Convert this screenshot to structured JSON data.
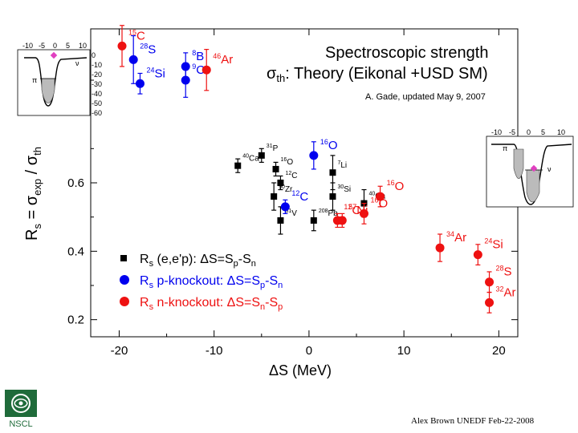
{
  "chart_data": {
    "type": "scatter",
    "title": "Spectroscopic strength",
    "subtitle_sym": "σ",
    "subtitle_sub": "th",
    "subtitle_rest": ": Theory (Eikonal +USD SM)",
    "credit": "A. Gade, updated May 9, 2007",
    "xlabel": "ΔS (MeV)",
    "ylabel_parts": [
      "R",
      "s",
      " = σ",
      "exp",
      " / σ",
      "th"
    ],
    "xlim": [
      -23,
      22
    ],
    "ylim": [
      0.15,
      1.05
    ],
    "x_ticks": [
      -20,
      -10,
      0,
      10,
      20
    ],
    "y_ticks": [
      0.2,
      0.4,
      0.6
    ],
    "legend": [
      {
        "series": "ee",
        "prefix": "R",
        "sub": "s",
        "text": " (e,e'p): ΔS=S",
        "sub2": "p",
        "text2": "-S",
        "sub3": "n"
      },
      {
        "series": "pk",
        "prefix": "R",
        "sub": "s",
        "text": " p-knockout: ΔS=S",
        "sub2": "p",
        "text2": "-S",
        "sub3": "n"
      },
      {
        "series": "nk",
        "prefix": "R",
        "sub": "s",
        "text": " n-knockout: ΔS=S",
        "sub2": "n",
        "text2": "-S",
        "sub3": "p"
      }
    ],
    "series": [
      {
        "id": "ee",
        "name": "(e,e'p)",
        "color": "#000000",
        "marker": "square",
        "points": [
          {
            "x": -7.5,
            "y": 0.65,
            "err": 0.02,
            "label_mass": "40",
            "label_el": "Ca"
          },
          {
            "x": -5.0,
            "y": 0.68,
            "err": 0.02,
            "label_mass": "31",
            "label_el": "P"
          },
          {
            "x": -3.5,
            "y": 0.64,
            "err": 0.02,
            "label_mass": "16",
            "label_el": "O"
          },
          {
            "x": -3.0,
            "y": 0.6,
            "err": 0.02,
            "label_mass": "12",
            "label_el": "C"
          },
          {
            "x": -3.7,
            "y": 0.56,
            "err": 0.04,
            "label_mass": "90",
            "label_el": "Zr"
          },
          {
            "x": -3.0,
            "y": 0.49,
            "err": 0.04,
            "label_mass": "51",
            "label_el": "V"
          },
          {
            "x": 0.5,
            "y": 0.49,
            "err": 0.03,
            "label_mass": "208",
            "label_el": "Pb"
          },
          {
            "x": 2.5,
            "y": 0.63,
            "err": 0.05,
            "label_mass": "7",
            "label_el": "Li"
          },
          {
            "x": 2.5,
            "y": 0.56,
            "err": 0.04,
            "label_mass": "30",
            "label_el": "Si"
          },
          {
            "x": 5.8,
            "y": 0.54,
            "err": 0.04,
            "label_mass": "40",
            "label_el": "Ca"
          }
        ]
      },
      {
        "id": "pk",
        "name": "p-knockout",
        "color": "#0000ee",
        "marker": "circle",
        "points": [
          {
            "x": -18.5,
            "y": 0.96,
            "err": 0.07,
            "label_mass": "28",
            "label_el": "S"
          },
          {
            "x": -17.8,
            "y": 0.89,
            "err": 0.03,
            "label_mass": "24",
            "label_el": "Si"
          },
          {
            "x": -13.0,
            "y": 0.94,
            "err": 0.04,
            "label_mass": "8",
            "label_el": "B"
          },
          {
            "x": -13.0,
            "y": 0.9,
            "err": 0.05,
            "label_mass": "9",
            "label_el": "C"
          },
          {
            "x": 0.5,
            "y": 0.68,
            "err": 0.04,
            "label_mass": "16",
            "label_el": "O"
          },
          {
            "x": -2.5,
            "y": 0.53,
            "err": 0.02,
            "label_mass": "12",
            "label_el": "C"
          }
        ]
      },
      {
        "id": "nk",
        "name": "n-knockout",
        "color": "#ee1111",
        "marker": "circle",
        "points": [
          {
            "x": -19.7,
            "y": 1.0,
            "err": 0.06,
            "label_mass": "15",
            "label_el": "C"
          },
          {
            "x": -10.8,
            "y": 0.93,
            "err": 0.06,
            "label_mass": "46",
            "label_el": "Ar"
          },
          {
            "x": 5.8,
            "y": 0.51,
            "err": 0.03,
            "label_mass": "16",
            "label_el": "O"
          },
          {
            "x": 7.5,
            "y": 0.56,
            "err": 0.03,
            "label_mass": "16",
            "label_el": "O"
          },
          {
            "x": 3.0,
            "y": 0.49,
            "err": 0.02,
            "label_mass": "12",
            "label_el": "C"
          },
          {
            "x": 3.5,
            "y": 0.49,
            "err": 0.02,
            "label_mass": "57",
            "label_el": "Ni"
          },
          {
            "x": 13.8,
            "y": 0.41,
            "err": 0.04,
            "label_mass": "34",
            "label_el": "Ar"
          },
          {
            "x": 17.8,
            "y": 0.39,
            "err": 0.03,
            "label_mass": "24",
            "label_el": "Si"
          },
          {
            "x": 19.0,
            "y": 0.31,
            "err": 0.03,
            "label_mass": "28",
            "label_el": "S"
          },
          {
            "x": 19.0,
            "y": 0.25,
            "err": 0.03,
            "label_mass": "32",
            "label_el": "Ar"
          }
        ]
      }
    ],
    "inset_left": {
      "ticks": [
        "-10",
        "-5",
        "0",
        "5",
        "10"
      ],
      "yticks": [
        "0",
        "-10",
        "-20",
        "-30",
        "-40",
        "-50",
        "-60"
      ],
      "pi_label": "π",
      "nu_label": "ν"
    },
    "inset_right": {
      "ticks": [
        "-10",
        "-5",
        "0",
        "5",
        "10"
      ],
      "pi_label": "π",
      "nu_label": "ν"
    }
  },
  "footer": "Alex Brown UNEDF Feb-22-2008",
  "logo_text": "NSCL"
}
